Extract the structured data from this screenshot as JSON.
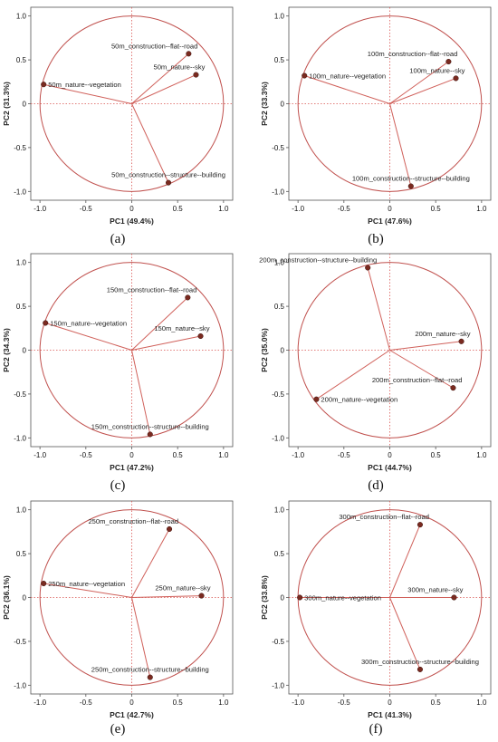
{
  "colors": {
    "circle": "#c0504d",
    "vector": "#d0605a",
    "point_fill": "#7a2a20",
    "zero_line": "#d9534f",
    "axis": "#555555"
  },
  "chart_data": [
    {
      "type": "scatter",
      "caption": "(a)",
      "xlabel": "PC1 (49.4%)",
      "ylabel": "PC2 (31.3%)",
      "xlim": [
        -1.1,
        1.1
      ],
      "ylim": [
        -1.1,
        1.1
      ],
      "xticks": [
        "-1.0",
        "-0.5",
        "0",
        "0.5",
        "1.0"
      ],
      "yticks": [
        "1.0",
        "0.5",
        "0",
        "-0.5",
        "-1.0"
      ],
      "points": [
        {
          "label": "50m_construction--flat--road",
          "x": 0.62,
          "y": 0.57
        },
        {
          "label": "50m_nature--sky",
          "x": 0.7,
          "y": 0.33
        },
        {
          "label": "50m_nature--vegetation",
          "x": -0.96,
          "y": 0.22
        },
        {
          "label": "50m_construction--structure--building",
          "x": 0.4,
          "y": -0.9
        }
      ]
    },
    {
      "type": "scatter",
      "caption": "(b)",
      "xlabel": "PC1 (47.6%)",
      "ylabel": "PC2 (33.3%)",
      "xlim": [
        -1.1,
        1.1
      ],
      "ylim": [
        -1.1,
        1.1
      ],
      "xticks": [
        "-1.0",
        "-0.5",
        "0",
        "0.5",
        "1.0"
      ],
      "yticks": [
        "1.0",
        "0.5",
        "0",
        "-0.5",
        "-1.0"
      ],
      "points": [
        {
          "label": "100m_construction--flat--road",
          "x": 0.64,
          "y": 0.48
        },
        {
          "label": "100m_nature--sky",
          "x": 0.72,
          "y": 0.29
        },
        {
          "label": "100m_nature--vegetation",
          "x": -0.93,
          "y": 0.32
        },
        {
          "label": "100m_construction--structure--building",
          "x": 0.23,
          "y": -0.94
        }
      ]
    },
    {
      "type": "scatter",
      "caption": "(c)",
      "xlabel": "PC1 (47.2%)",
      "ylabel": "PC2 (34.3%)",
      "xlim": [
        -1.1,
        1.1
      ],
      "ylim": [
        -1.1,
        1.1
      ],
      "xticks": [
        "-1.0",
        "-0.5",
        "0",
        "0.5",
        "1.0"
      ],
      "yticks": [
        "1.0",
        "0.5",
        "0",
        "-0.5",
        "-1.0"
      ],
      "points": [
        {
          "label": "150m_construction--flat--road",
          "x": 0.61,
          "y": 0.6
        },
        {
          "label": "150m_nature--sky",
          "x": 0.75,
          "y": 0.16
        },
        {
          "label": "150m_nature--vegetation",
          "x": -0.94,
          "y": 0.31
        },
        {
          "label": "150m_construction--structure--building",
          "x": 0.2,
          "y": -0.96
        }
      ]
    },
    {
      "type": "scatter",
      "caption": "(d)",
      "xlabel": "PC1 (44.7%)",
      "ylabel": "PC2 (35.0%)",
      "xlim": [
        -1.1,
        1.1
      ],
      "ylim": [
        -1.1,
        1.1
      ],
      "xticks": [
        "-1.0",
        "-0.5",
        "0",
        "0.5",
        "1.0"
      ],
      "yticks": [
        "1.0",
        "0.5",
        "0",
        "-0.5",
        "-1.0"
      ],
      "points": [
        {
          "label": "200m_construction--structure--building",
          "x": -0.24,
          "y": 0.94
        },
        {
          "label": "200m_nature--sky",
          "x": 0.78,
          "y": 0.1
        },
        {
          "label": "200m_construction--flat--road",
          "x": 0.69,
          "y": -0.43
        },
        {
          "label": "200m_nature--vegetation",
          "x": -0.8,
          "y": -0.56
        }
      ]
    },
    {
      "type": "scatter",
      "caption": "(e)",
      "xlabel": "PC1 (42.7%)",
      "ylabel": "PC2 (36.1%)",
      "xlim": [
        -1.1,
        1.1
      ],
      "ylim": [
        -1.1,
        1.1
      ],
      "xticks": [
        "-1.0",
        "-0.5",
        "0",
        "0.5",
        "1.0"
      ],
      "yticks": [
        "1.0",
        "0.5",
        "0",
        "-0.5",
        "-1.0"
      ],
      "points": [
        {
          "label": "250m_construction--flat--road",
          "x": 0.41,
          "y": 0.78
        },
        {
          "label": "250m_nature--vegetation",
          "x": -0.96,
          "y": 0.16
        },
        {
          "label": "250m_nature--sky",
          "x": 0.76,
          "y": 0.02
        },
        {
          "label": "250m_construction--structure--building",
          "x": 0.2,
          "y": -0.91
        }
      ]
    },
    {
      "type": "scatter",
      "caption": "(f)",
      "xlabel": "PC1 (41.3%)",
      "ylabel": "PC2 (33.8%)",
      "xlim": [
        -1.1,
        1.1
      ],
      "ylim": [
        -1.1,
        1.1
      ],
      "xticks": [
        "-1.0",
        "-0.5",
        "0",
        "0.5",
        "1.0"
      ],
      "yticks": [
        "1.0",
        "0.5",
        "0",
        "-0.5",
        "-1.0"
      ],
      "points": [
        {
          "label": "300m_construction--flat--road",
          "x": 0.33,
          "y": 0.83
        },
        {
          "label": "300m_nature--vegetation",
          "x": -0.98,
          "y": 0.0
        },
        {
          "label": "300m_nature--sky",
          "x": 0.7,
          "y": 0.0
        },
        {
          "label": "300m_construction--structure--building",
          "x": 0.33,
          "y": -0.82
        }
      ]
    }
  ]
}
